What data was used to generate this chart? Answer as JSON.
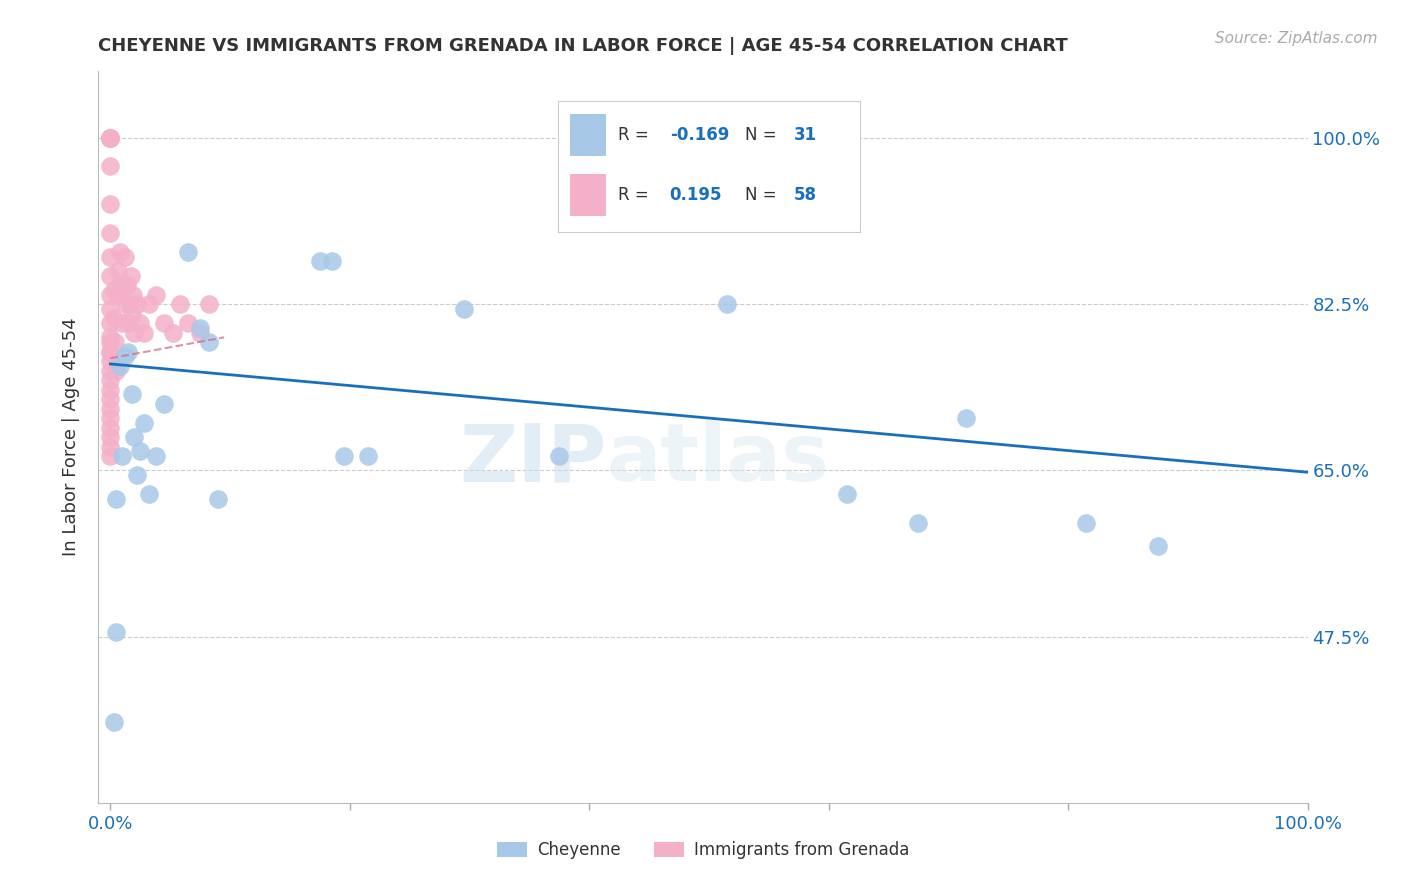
{
  "title": "CHEYENNE VS IMMIGRANTS FROM GRENADA IN LABOR FORCE | AGE 45-54 CORRELATION CHART",
  "source": "Source: ZipAtlas.com",
  "ylabel": "In Labor Force | Age 45-54",
  "xlim": [
    -0.01,
    1.0
  ],
  "ylim": [
    0.3,
    1.07
  ],
  "yticks": [
    0.475,
    0.65,
    0.825,
    1.0
  ],
  "ytick_labels": [
    "47.5%",
    "65.0%",
    "82.5%",
    "100.0%"
  ],
  "cheyenne_color": "#a8c8e8",
  "grenada_color": "#f4b0c8",
  "trend_blue": "#1a6fbd",
  "trend_pink": "#d07090",
  "cheyenne_R": -0.169,
  "cheyenne_N": 31,
  "grenada_R": 0.195,
  "grenada_N": 58,
  "cheyenne_x": [
    0.003,
    0.005,
    0.005,
    0.008,
    0.01,
    0.012,
    0.015,
    0.018,
    0.02,
    0.022,
    0.025,
    0.028,
    0.032,
    0.038,
    0.045,
    0.065,
    0.075,
    0.082,
    0.09,
    0.175,
    0.185,
    0.195,
    0.215,
    0.295,
    0.375,
    0.515,
    0.615,
    0.675,
    0.715,
    0.815,
    0.875
  ],
  "cheyenne_y": [
    0.385,
    0.62,
    0.48,
    0.76,
    0.665,
    0.77,
    0.775,
    0.73,
    0.685,
    0.645,
    0.67,
    0.7,
    0.625,
    0.665,
    0.72,
    0.88,
    0.8,
    0.785,
    0.62,
    0.87,
    0.87,
    0.665,
    0.665,
    0.82,
    0.665,
    0.825,
    0.625,
    0.595,
    0.705,
    0.595,
    0.57
  ],
  "grenada_x": [
    0.0,
    0.0,
    0.0,
    0.0,
    0.0,
    0.0,
    0.0,
    0.0,
    0.0,
    0.0,
    0.0,
    0.0,
    0.0,
    0.0,
    0.0,
    0.0,
    0.0,
    0.0,
    0.0,
    0.0,
    0.0,
    0.0,
    0.0,
    0.0,
    0.0,
    0.0,
    0.0,
    0.0,
    0.003,
    0.003,
    0.004,
    0.005,
    0.006,
    0.007,
    0.008,
    0.009,
    0.01,
    0.01,
    0.012,
    0.013,
    0.014,
    0.015,
    0.016,
    0.017,
    0.018,
    0.019,
    0.02,
    0.022,
    0.025,
    0.028,
    0.032,
    0.038,
    0.045,
    0.052,
    0.058,
    0.065,
    0.075,
    0.082
  ],
  "grenada_y": [
    1.0,
    1.0,
    1.0,
    1.0,
    1.0,
    0.97,
    0.93,
    0.9,
    0.875,
    0.855,
    0.835,
    0.82,
    0.805,
    0.79,
    0.785,
    0.775,
    0.775,
    0.765,
    0.755,
    0.745,
    0.735,
    0.725,
    0.715,
    0.705,
    0.695,
    0.685,
    0.675,
    0.665,
    0.84,
    0.81,
    0.785,
    0.755,
    0.86,
    0.835,
    0.88,
    0.845,
    0.805,
    0.845,
    0.875,
    0.825,
    0.845,
    0.805,
    0.825,
    0.855,
    0.815,
    0.835,
    0.795,
    0.825,
    0.805,
    0.795,
    0.825,
    0.835,
    0.805,
    0.795,
    0.825,
    0.805,
    0.795,
    0.825
  ],
  "watermark_zip": "ZIP",
  "watermark_atlas": "atlas",
  "background_color": "#ffffff",
  "grid_color": "#cccccc",
  "cheyenne_trend_x": [
    0.0,
    1.0
  ],
  "cheyenne_trend_y_start": 0.762,
  "cheyenne_trend_y_end": 0.648,
  "grenada_trend_x": [
    0.0,
    0.095
  ],
  "grenada_trend_y_start": 0.768,
  "grenada_trend_y_end": 0.79
}
